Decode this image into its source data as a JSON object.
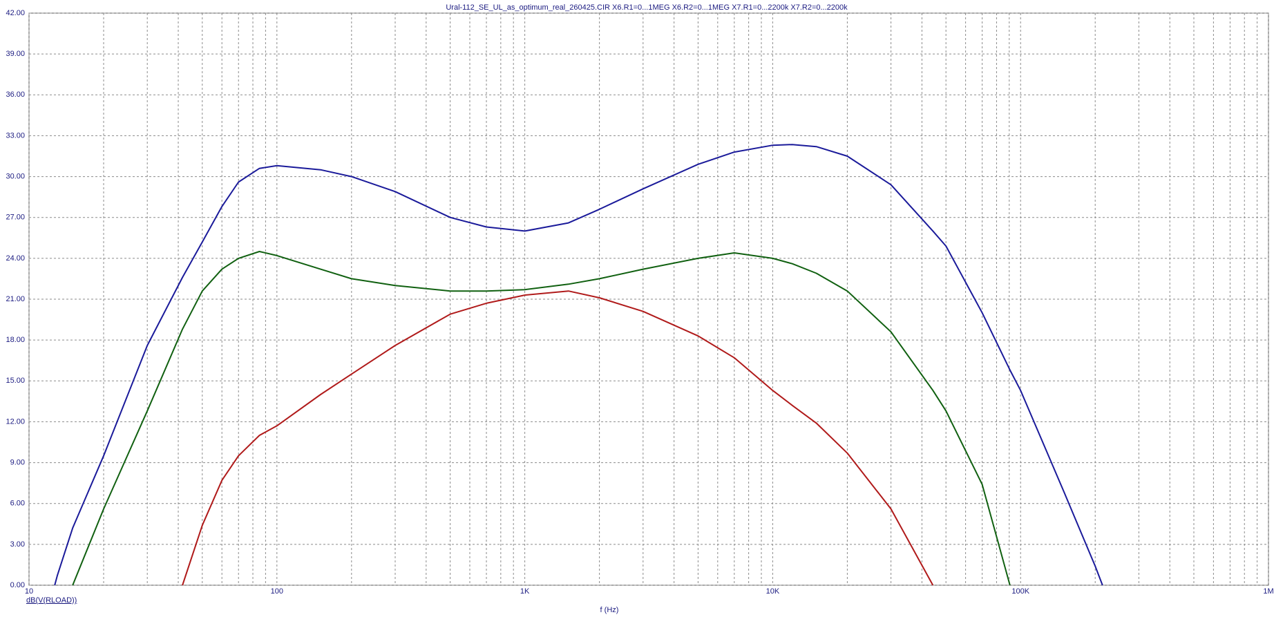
{
  "chart_data": {
    "type": "line",
    "title": "Ural-112_SE_UL_as_optimum_real_260425.CIR X6.R1=0...1MEG X6.R2=0...1MEG X7.R1=0...2200k X7.R2=0...2200k",
    "y_label": "dB(V(RLOAD))",
    "x_label": "f (Hz)",
    "log_x": true,
    "grid": true,
    "xlim": [
      10,
      1000000
    ],
    "ylim": [
      0,
      42
    ],
    "xticks": [
      10,
      100,
      {
        "value": 1000,
        "label": "1K"
      },
      {
        "value": 10000,
        "label": "10K"
      },
      {
        "value": 100000,
        "label": "100K"
      },
      {
        "value": 1000000,
        "label": "1M"
      }
    ],
    "xminorticks": [
      20,
      30,
      40,
      50,
      60,
      70,
      80,
      90,
      200,
      300,
      400,
      500,
      600,
      700,
      800,
      900,
      2000,
      3000,
      4000,
      5000,
      6000,
      7000,
      8000,
      9000,
      20000,
      30000,
      40000,
      50000,
      60000,
      70000,
      80000,
      90000,
      200000,
      300000,
      400000,
      500000,
      600000,
      700000,
      800000,
      900000
    ],
    "yticks": [
      {
        "value": 0,
        "label": "0.00"
      },
      {
        "value": 3,
        "label": "3.00"
      },
      {
        "value": 6,
        "label": "6.00"
      },
      {
        "value": 9,
        "label": "9.00"
      },
      {
        "value": 12,
        "label": "12.00"
      },
      {
        "value": 15,
        "label": "15.00"
      },
      {
        "value": 18,
        "label": "18.00"
      },
      {
        "value": 21,
        "label": "21.00"
      },
      {
        "value": 24,
        "label": "24.00"
      },
      {
        "value": 27,
        "label": "27.00"
      },
      {
        "value": 30,
        "label": "30.00"
      },
      {
        "value": 33,
        "label": "33.00"
      },
      {
        "value": 36,
        "label": "36.00"
      },
      {
        "value": 39,
        "label": "39.00"
      },
      {
        "value": 42,
        "label": "42.00"
      }
    ],
    "x": [
      12.7,
      13,
      15,
      20,
      30,
      41.6,
      50,
      60,
      70,
      85,
      100,
      150,
      200,
      300,
      500,
      700,
      1000,
      1500,
      2000,
      3000,
      5000,
      7000,
      10000,
      12000,
      15000,
      20000,
      30000,
      44300,
      50000,
      70000,
      90600,
      100000,
      150000,
      200000,
      214000
    ],
    "series": [
      {
        "color": "#1a1a9a",
        "values": [
          0,
          0.7,
          4.2,
          9.5,
          17.6,
          22.6,
          25.2,
          27.8,
          29.6,
          30.6,
          30.8,
          30.5,
          30.0,
          28.9,
          27.0,
          26.3,
          26.0,
          26.6,
          27.6,
          29.1,
          30.9,
          31.8,
          32.3,
          32.35,
          32.2,
          31.5,
          29.4,
          26.0,
          24.9,
          20.0,
          15.8,
          14.3,
          6.8,
          1.4,
          0
        ]
      },
      {
        "color": "#106010",
        "values": [
          null,
          null,
          0,
          5.6,
          12.8,
          18.8,
          21.6,
          23.2,
          24.0,
          24.5,
          24.2,
          23.2,
          22.5,
          22.0,
          21.6,
          21.6,
          21.7,
          22.1,
          22.5,
          23.2,
          24.0,
          24.4,
          24.0,
          23.6,
          22.9,
          21.6,
          18.6,
          14.3,
          12.8,
          7.4,
          0,
          null,
          null,
          null,
          null
        ]
      },
      {
        "color": "#b01a1a",
        "values": [
          null,
          null,
          null,
          null,
          null,
          0,
          4.4,
          7.7,
          9.5,
          11.0,
          11.7,
          14.0,
          15.5,
          17.6,
          19.9,
          20.7,
          21.3,
          21.6,
          21.1,
          20.1,
          18.3,
          16.7,
          14.3,
          13.2,
          11.9,
          9.7,
          5.6,
          0,
          null,
          null,
          null,
          null,
          null,
          null,
          null
        ]
      }
    ]
  }
}
